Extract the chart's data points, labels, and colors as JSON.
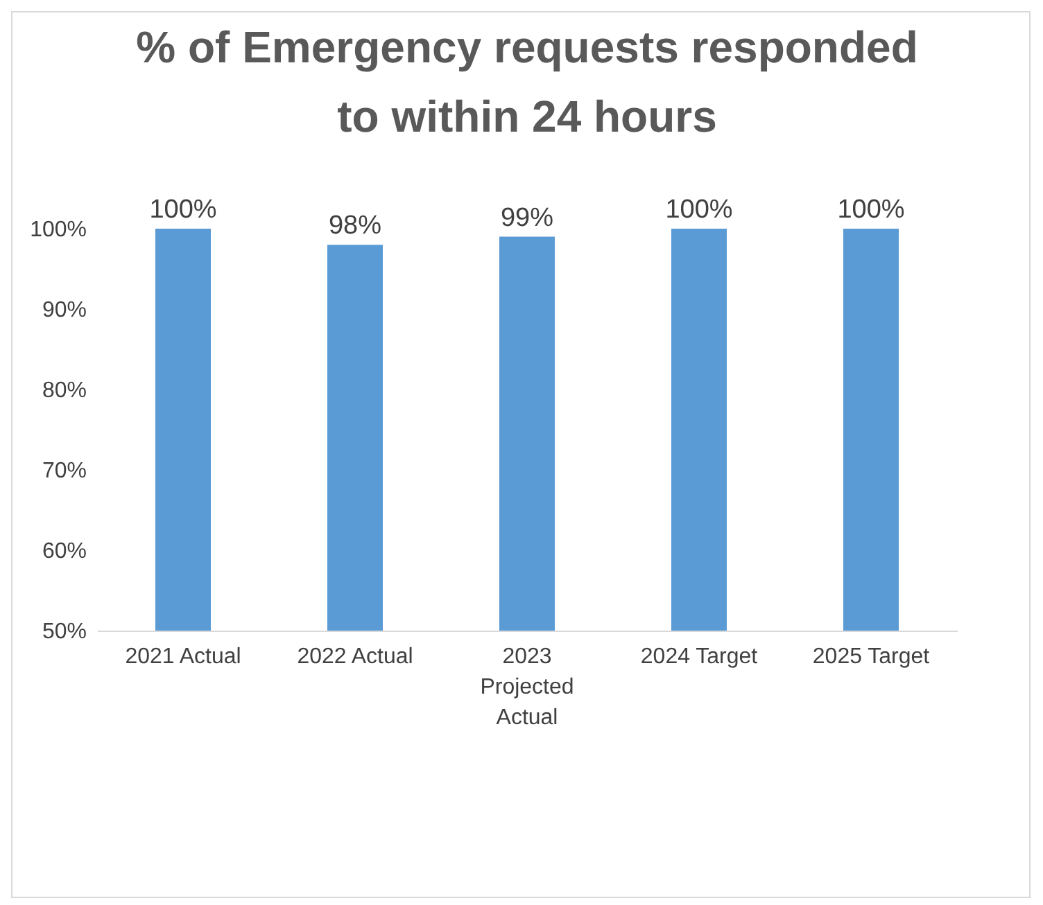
{
  "chart_data": {
    "type": "bar",
    "title": "% of Emergency requests responded to within 24 hours",
    "categories": [
      "2021 Actual",
      "2022 Actual",
      "2023 Projected Actual",
      "2024 Target",
      "2025 Target"
    ],
    "values": [
      100,
      98,
      99,
      100,
      100
    ],
    "value_labels": [
      "100%",
      "98%",
      "99%",
      "100%",
      "100%"
    ],
    "color": "#5b9bd5",
    "ylim": [
      50,
      100
    ],
    "yticks": [
      {
        "value": 50,
        "label": "50%"
      },
      {
        "value": 60,
        "label": "60%"
      },
      {
        "value": 70,
        "label": "70%"
      },
      {
        "value": 80,
        "label": "80%"
      },
      {
        "value": 90,
        "label": "90%"
      },
      {
        "value": 100,
        "label": "100%"
      }
    ],
    "grid": false
  }
}
